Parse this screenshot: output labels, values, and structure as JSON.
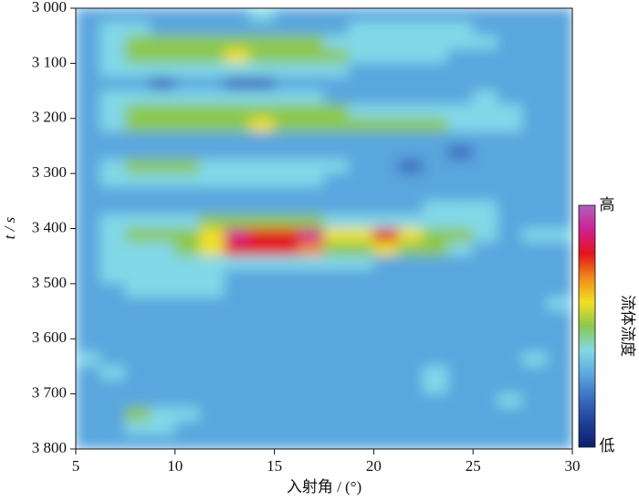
{
  "chart_data": {
    "type": "heatmap",
    "x_label": "入射角 / (°)",
    "y_label": "t / s",
    "xbins": [
      5,
      6.25,
      7.5,
      8.75,
      10,
      11.25,
      12.5,
      13.75,
      15,
      16.25,
      17.5,
      18.75,
      20,
      21.25,
      22.5,
      23.75,
      25,
      26.25,
      27.5,
      28.75,
      30
    ],
    "ybins": [
      3000,
      3025,
      3050,
      3075,
      3100,
      3125,
      3150,
      3175,
      3200,
      3225,
      3250,
      3275,
      3300,
      3325,
      3350,
      3375,
      3400,
      3425,
      3450,
      3475,
      3500,
      3525,
      3550,
      3575,
      3600,
      3625,
      3650,
      3675,
      3700,
      3725,
      3750,
      3775,
      3800
    ],
    "xlim": [
      5,
      30
    ],
    "ylim": [
      3000,
      3800
    ],
    "y_inverted": true,
    "xticks": [
      5,
      10,
      15,
      20,
      25,
      30
    ],
    "yticks": [
      {
        "value": 3000,
        "label": "3 000"
      },
      {
        "value": 3100,
        "label": "3 100"
      },
      {
        "value": 3200,
        "label": "3 200"
      },
      {
        "value": 3300,
        "label": "3 300"
      },
      {
        "value": 3400,
        "label": "3 400"
      },
      {
        "value": 3500,
        "label": "3 500"
      },
      {
        "value": 3600,
        "label": "3 600"
      },
      {
        "value": 3700,
        "label": "3 700"
      },
      {
        "value": 3800,
        "label": "3 800"
      }
    ],
    "zlim": [
      0,
      10
    ],
    "colorscale": [
      "#0d1f6e",
      "#1e3f96",
      "#3a6cc0",
      "#5aa6de",
      "#82d8e8",
      "#8cc84e",
      "#f0e020",
      "#f08a1c",
      "#e3141c",
      "#d02090",
      "#b060c0"
    ],
    "colorbar_title": "流体流度",
    "colorbar_high": "高",
    "colorbar_low": "低",
    "z": [
      [
        3,
        3,
        3,
        3,
        3,
        3,
        3,
        4,
        3,
        3,
        3,
        3,
        3,
        3,
        3,
        3,
        3,
        3,
        3,
        3
      ],
      [
        3,
        4,
        4,
        3,
        3,
        3,
        3,
        3,
        3,
        3,
        3,
        4,
        4,
        4,
        4,
        4,
        3,
        3,
        3,
        3
      ],
      [
        3,
        4,
        5,
        5,
        5,
        5,
        5,
        5,
        5,
        5,
        4,
        4,
        4,
        4,
        4,
        4,
        4,
        3,
        3,
        3
      ],
      [
        3,
        4,
        5,
        5,
        5,
        5,
        6,
        5,
        5,
        5,
        5,
        4,
        4,
        4,
        4,
        3,
        3,
        3,
        3,
        3
      ],
      [
        3,
        4,
        4,
        4,
        4,
        4,
        4,
        4,
        4,
        4,
        4,
        3,
        3,
        3,
        3,
        3,
        3,
        3,
        3,
        3
      ],
      [
        3,
        3,
        3,
        2,
        3,
        3,
        2,
        2,
        3,
        3,
        3,
        3,
        3,
        3,
        3,
        3,
        3,
        3,
        3,
        3
      ],
      [
        3,
        4,
        4,
        4,
        4,
        4,
        4,
        4,
        4,
        4,
        3,
        3,
        3,
        3,
        3,
        3,
        4,
        3,
        3,
        3
      ],
      [
        3,
        4,
        5,
        5,
        5,
        5,
        5,
        5,
        5,
        5,
        5,
        4,
        4,
        4,
        4,
        4,
        4,
        4,
        3,
        3
      ],
      [
        3,
        4,
        5,
        5,
        5,
        5,
        5,
        6,
        5,
        5,
        5,
        5,
        5,
        5,
        5,
        4,
        4,
        4,
        3,
        3
      ],
      [
        3,
        3,
        3,
        3,
        3,
        3,
        3,
        3,
        3,
        3,
        3,
        3,
        3,
        3,
        3,
        3,
        3,
        3,
        3,
        3
      ],
      [
        3,
        3,
        3,
        3,
        3,
        3,
        3,
        3,
        3,
        3,
        3,
        3,
        3,
        3,
        3,
        2,
        3,
        3,
        3,
        3
      ],
      [
        3,
        4,
        5,
        5,
        5,
        4,
        4,
        4,
        4,
        4,
        4,
        3,
        3,
        2,
        3,
        3,
        3,
        3,
        3,
        3
      ],
      [
        3,
        4,
        4,
        4,
        4,
        4,
        4,
        4,
        4,
        4,
        3,
        3,
        3,
        3,
        3,
        3,
        3,
        3,
        3,
        3
      ],
      [
        3,
        3,
        3,
        3,
        3,
        3,
        3,
        3,
        3,
        3,
        3,
        3,
        3,
        3,
        3,
        3,
        3,
        3,
        3,
        3
      ],
      [
        3,
        3,
        3,
        3,
        3,
        3,
        3,
        3,
        3,
        3,
        3,
        3,
        3,
        3,
        4,
        4,
        4,
        3,
        3,
        3
      ],
      [
        3,
        4,
        4,
        4,
        4,
        5,
        5,
        5,
        5,
        5,
        4,
        4,
        4,
        4,
        4,
        4,
        4,
        3,
        3,
        3
      ],
      [
        3,
        4,
        5,
        5,
        5,
        6,
        9,
        8,
        8,
        9,
        6,
        6,
        8,
        6,
        5,
        5,
        4,
        3,
        4,
        4
      ],
      [
        3,
        4,
        4,
        4,
        5,
        6,
        8,
        8,
        8,
        7,
        5,
        5,
        6,
        5,
        5,
        4,
        3,
        3,
        3,
        3
      ],
      [
        3,
        4,
        4,
        4,
        4,
        4,
        4,
        4,
        4,
        4,
        4,
        4,
        3,
        3,
        3,
        3,
        3,
        3,
        3,
        3
      ],
      [
        3,
        4,
        4,
        4,
        4,
        4,
        3,
        3,
        3,
        3,
        3,
        3,
        3,
        3,
        3,
        3,
        3,
        3,
        3,
        3
      ],
      [
        3,
        3,
        4,
        4,
        4,
        4,
        3,
        3,
        3,
        3,
        3,
        3,
        3,
        3,
        3,
        3,
        3,
        3,
        3,
        3
      ],
      [
        3,
        3,
        3,
        3,
        3,
        3,
        3,
        3,
        3,
        3,
        3,
        3,
        3,
        3,
        3,
        3,
        3,
        3,
        3,
        4
      ],
      [
        3,
        3,
        3,
        3,
        3,
        3,
        3,
        3,
        3,
        3,
        3,
        3,
        3,
        3,
        3,
        3,
        3,
        3,
        3,
        3
      ],
      [
        3,
        3,
        3,
        3,
        3,
        3,
        3,
        3,
        3,
        3,
        3,
        3,
        3,
        3,
        3,
        3,
        3,
        3,
        3,
        3
      ],
      [
        3,
        3,
        3,
        3,
        3,
        3,
        3,
        3,
        3,
        3,
        3,
        3,
        3,
        3,
        3,
        3,
        3,
        3,
        3,
        3
      ],
      [
        4,
        3,
        3,
        3,
        3,
        3,
        3,
        3,
        3,
        3,
        3,
        3,
        3,
        3,
        3,
        3,
        3,
        3,
        4,
        3
      ],
      [
        3,
        4,
        3,
        3,
        3,
        3,
        3,
        3,
        3,
        3,
        3,
        3,
        3,
        3,
        4,
        3,
        3,
        3,
        3,
        3
      ],
      [
        3,
        3,
        3,
        3,
        3,
        3,
        3,
        3,
        3,
        3,
        3,
        3,
        3,
        3,
        4,
        3,
        3,
        3,
        3,
        3
      ],
      [
        3,
        3,
        3,
        3,
        3,
        3,
        3,
        3,
        3,
        3,
        3,
        3,
        3,
        3,
        3,
        3,
        3,
        4,
        3,
        3
      ],
      [
        3,
        3,
        5,
        4,
        4,
        3,
        3,
        3,
        3,
        3,
        3,
        3,
        3,
        3,
        3,
        3,
        3,
        3,
        3,
        3
      ],
      [
        3,
        3,
        4,
        4,
        3,
        3,
        3,
        3,
        3,
        3,
        3,
        3,
        3,
        3,
        3,
        3,
        3,
        3,
        3,
        3
      ],
      [
        3,
        3,
        3,
        3,
        3,
        3,
        3,
        3,
        3,
        3,
        3,
        3,
        3,
        3,
        3,
        3,
        3,
        3,
        3,
        3
      ]
    ]
  }
}
